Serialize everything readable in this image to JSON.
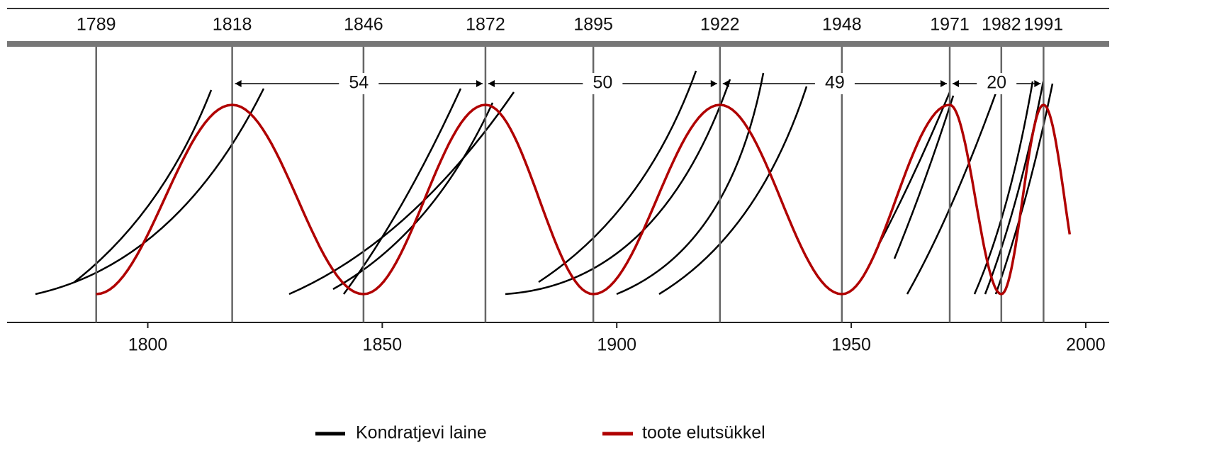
{
  "chart_data": {
    "type": "wave",
    "markers": [
      1789,
      1818,
      1846,
      1872,
      1895,
      1922,
      1948,
      1971,
      1982,
      1991
    ],
    "intervals": [
      "54",
      "50",
      "49",
      "20"
    ],
    "xlim": [
      1770,
      2005
    ],
    "xticks": [
      1800,
      1850,
      1900,
      1950,
      2000
    ],
    "series": [
      {
        "name": "Kondratjevi laine",
        "color": "#000000"
      },
      {
        "name": "toote elutsükkel",
        "color": "#b00000"
      }
    ]
  }
}
